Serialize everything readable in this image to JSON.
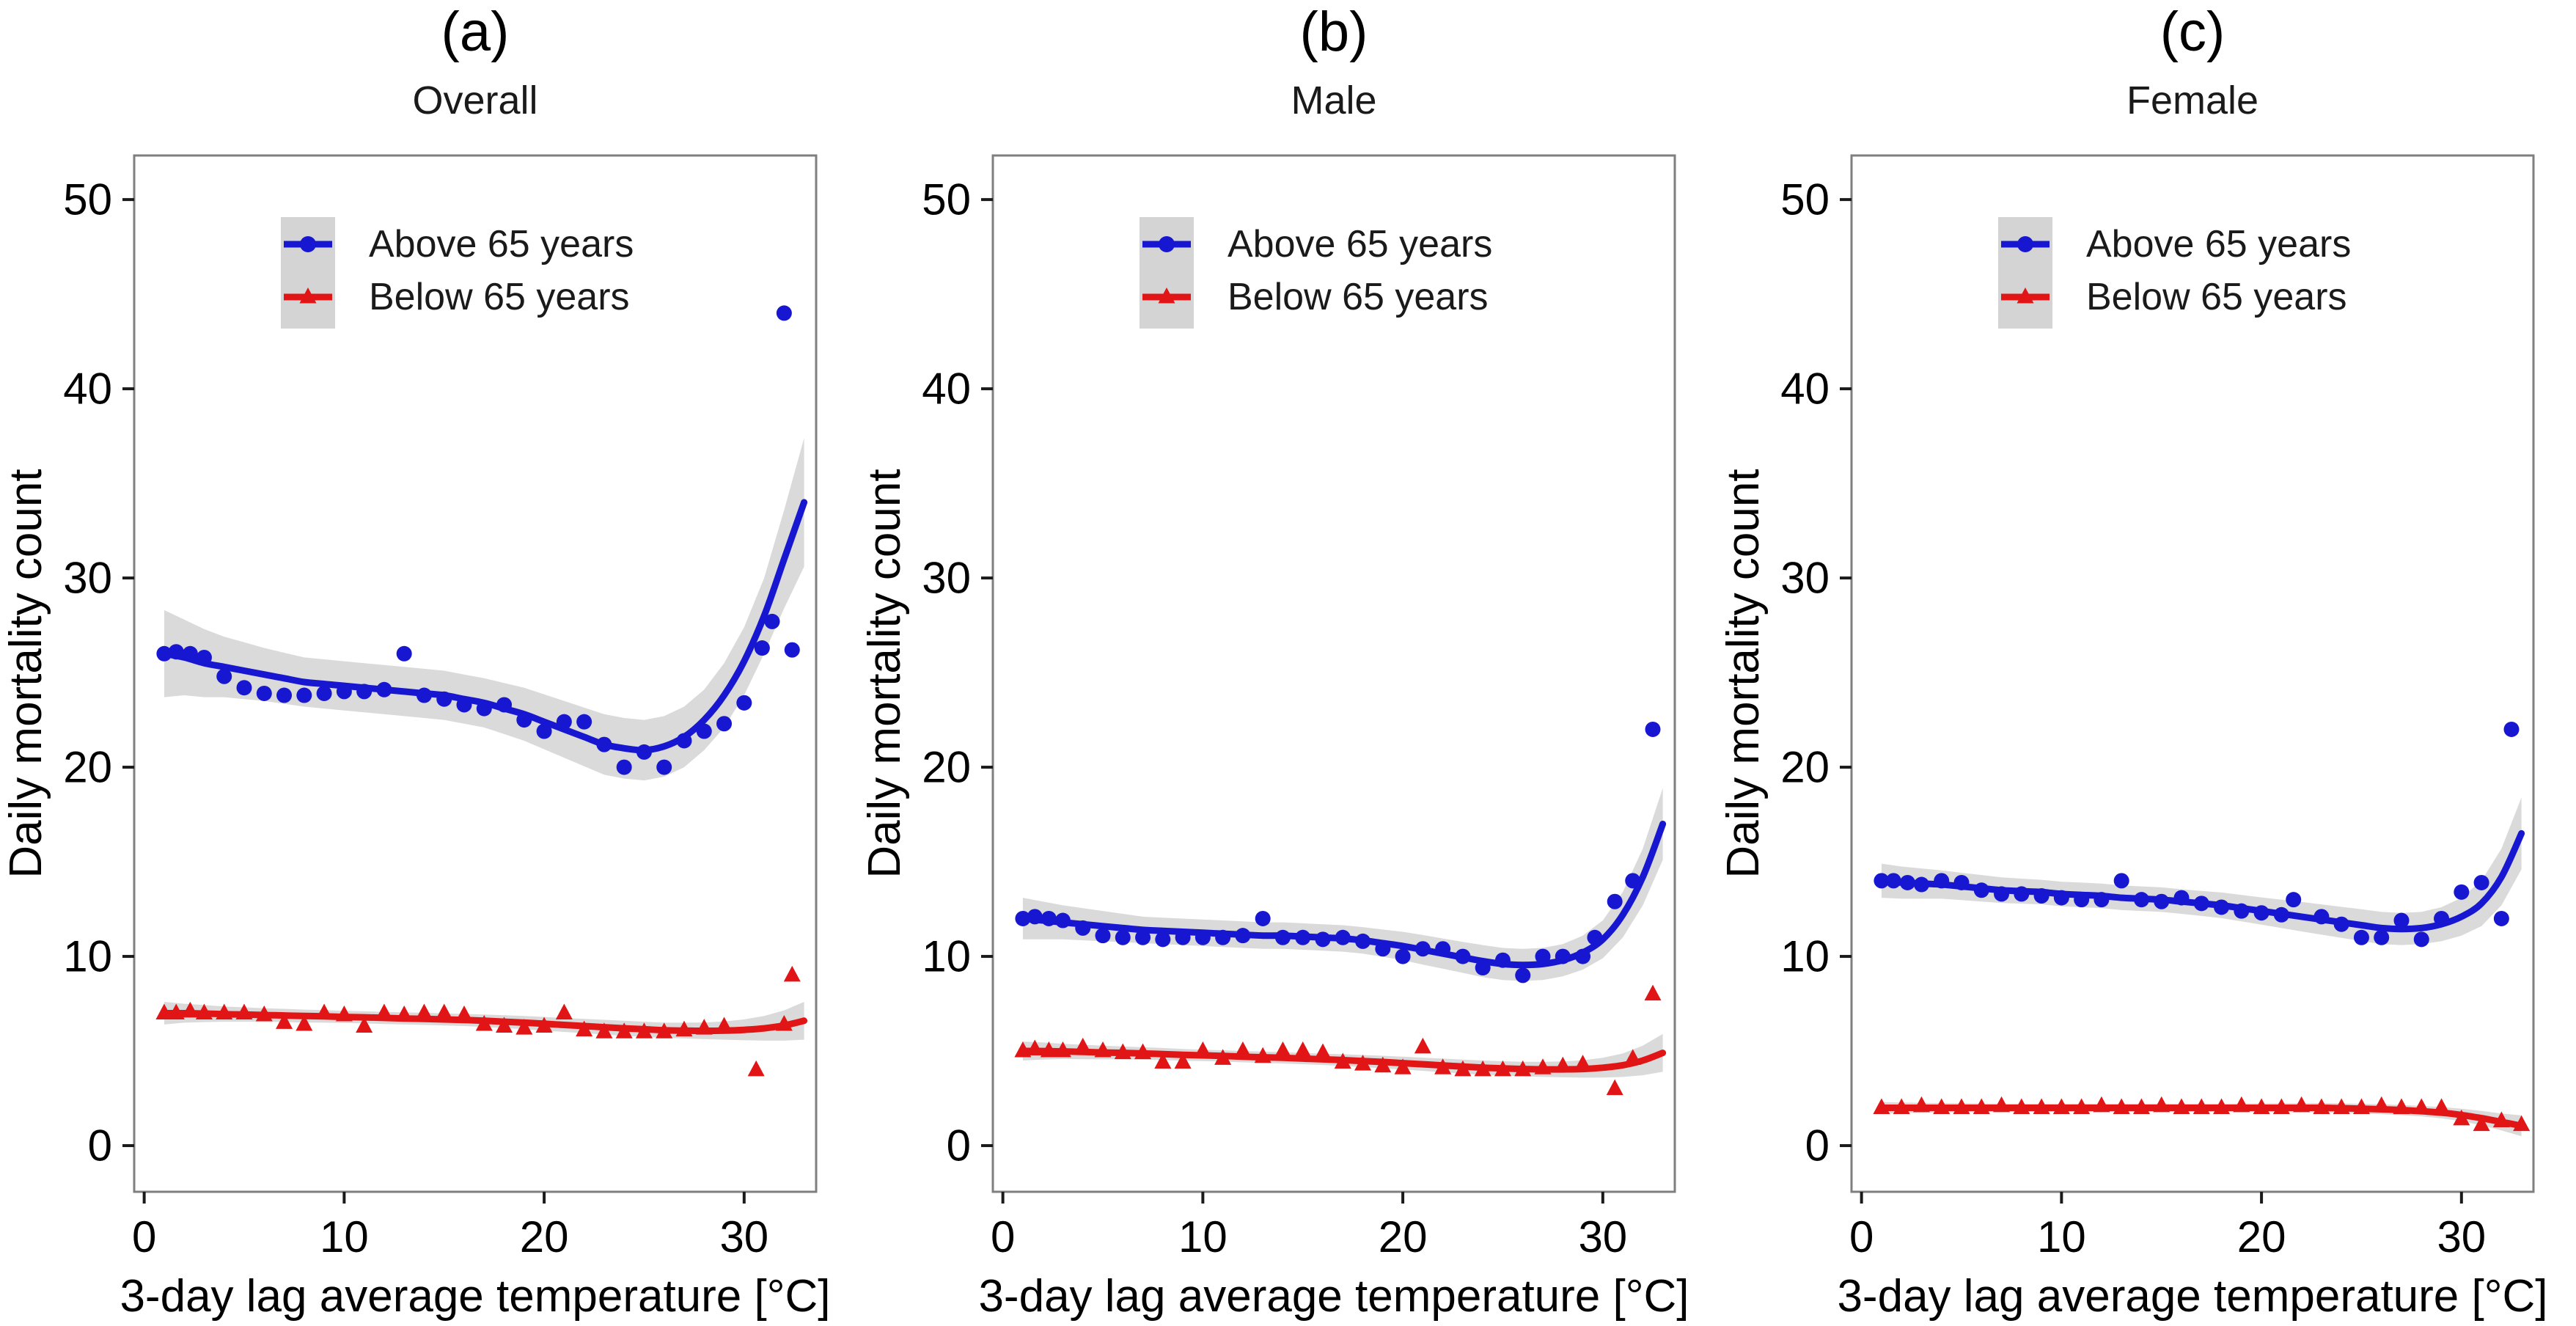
{
  "figure": {
    "background": "#ffffff",
    "border_color": "#7f7f7f",
    "band_color": "#d3d3d3",
    "text_color": "#000000",
    "accent_blue": "#1717d2",
    "accent_red": "#e11515"
  },
  "chart_data": [
    {
      "type": "scatter",
      "panel_label": "(a)",
      "title": "Overall",
      "xlabel": "3-day lag average temperature [°C]",
      "ylabel": "Daily mortality count",
      "xlim": [
        -0.5,
        33.6
      ],
      "ylim": [
        -2.44,
        52.33
      ],
      "xticks": [
        0,
        10,
        20,
        30
      ],
      "yticks": [
        0,
        10,
        20,
        30,
        40,
        50
      ],
      "grid": false,
      "legend_position": "upper-left-inside",
      "series": [
        {
          "name": "Above 65 years",
          "color": "#1717d2",
          "marker": "circle",
          "x": [
            1,
            1.6,
            2.3,
            3,
            4,
            5,
            6,
            7,
            8,
            9,
            10,
            11,
            12,
            13,
            14,
            15,
            16,
            17,
            18,
            19,
            20,
            21,
            22,
            23,
            24,
            25,
            26,
            27,
            28,
            29,
            30,
            30.9,
            31.4,
            32,
            32.4
          ],
          "y": [
            26,
            26.1,
            26,
            25.8,
            24.8,
            24.2,
            23.9,
            23.8,
            23.8,
            23.9,
            24,
            24,
            24.1,
            26,
            23.8,
            23.6,
            23.3,
            23.1,
            23.3,
            22.5,
            21.9,
            22.4,
            22.4,
            21.2,
            20,
            20.8,
            20,
            21.4,
            21.9,
            22.3,
            23.4,
            26.3,
            27.7,
            44,
            26.2
          ],
          "trend_x_range": [
            1,
            33
          ],
          "trend_y": [
            26,
            25.8,
            25.5,
            25.3,
            25.1,
            24.9,
            24.7,
            24.5,
            24.4,
            24.3,
            24.2,
            24.1,
            24,
            23.9,
            23.8,
            23.6,
            23.4,
            23.1,
            22.8,
            22.4,
            22,
            21.6,
            21.2,
            21,
            20.9,
            21.1,
            21.6,
            22.5,
            23.8,
            25.6,
            28,
            31,
            34
          ],
          "band_halfwidth": [
            2.3,
            2.0,
            1.8,
            1.6,
            1.5,
            1.4,
            1.35,
            1.3,
            1.3,
            1.3,
            1.3,
            1.3,
            1.3,
            1.3,
            1.3,
            1.3,
            1.3,
            1.35,
            1.4,
            1.45,
            1.5,
            1.55,
            1.6,
            1.6,
            1.6,
            1.6,
            1.6,
            1.6,
            1.7,
            1.8,
            2.0,
            2.6,
            3.4
          ]
        },
        {
          "name": "Below 65 years",
          "color": "#e11515",
          "marker": "triangle",
          "x": [
            1,
            1.6,
            2.3,
            3,
            4,
            5,
            6,
            7,
            8,
            9,
            10,
            11,
            12,
            13,
            14,
            15,
            16,
            17,
            18,
            19,
            20,
            21,
            22,
            23,
            24,
            25,
            26,
            27,
            28,
            29,
            30.6,
            32,
            32.4
          ],
          "y": [
            7,
            7,
            7.1,
            7,
            7,
            7,
            6.9,
            6.5,
            6.4,
            7,
            6.9,
            6.3,
            7,
            6.9,
            7,
            7,
            6.9,
            6.4,
            6.3,
            6.2,
            6.3,
            7,
            6.1,
            6,
            6,
            6,
            6,
            6.1,
            6.2,
            6.3,
            4,
            6.4,
            9
          ],
          "trend_x_range": [
            1,
            33
          ],
          "trend_y": [
            7,
            7,
            6.98,
            6.95,
            6.93,
            6.9,
            6.88,
            6.85,
            6.83,
            6.8,
            6.78,
            6.75,
            6.72,
            6.7,
            6.67,
            6.64,
            6.6,
            6.55,
            6.5,
            6.44,
            6.38,
            6.32,
            6.26,
            6.2,
            6.15,
            6.1,
            6.08,
            6.07,
            6.08,
            6.12,
            6.2,
            6.35,
            6.6
          ],
          "band_halfwidth": [
            0.6,
            0.5,
            0.45,
            0.4,
            0.38,
            0.36,
            0.35,
            0.34,
            0.33,
            0.32,
            0.32,
            0.32,
            0.32,
            0.32,
            0.32,
            0.32,
            0.33,
            0.34,
            0.35,
            0.36,
            0.37,
            0.38,
            0.39,
            0.4,
            0.4,
            0.4,
            0.42,
            0.44,
            0.48,
            0.55,
            0.65,
            0.8,
            1.0
          ]
        }
      ]
    },
    {
      "type": "scatter",
      "panel_label": "(b)",
      "title": "Male",
      "xlabel": "3-day lag average temperature [°C]",
      "ylabel": "Daily mortality count",
      "xlim": [
        -0.5,
        33.6
      ],
      "ylim": [
        -2.44,
        52.33
      ],
      "xticks": [
        0,
        10,
        20,
        30
      ],
      "yticks": [
        0,
        10,
        20,
        30,
        40,
        50
      ],
      "grid": false,
      "legend_position": "upper-left-inside",
      "series": [
        {
          "name": "Above 65 years",
          "color": "#1717d2",
          "marker": "circle",
          "x": [
            1,
            1.6,
            2.3,
            3,
            4,
            5,
            6,
            7,
            8,
            9,
            10,
            11,
            12,
            13,
            14,
            15,
            16,
            17,
            18,
            19,
            20,
            21,
            22,
            23,
            24,
            25,
            26,
            27,
            28,
            29,
            29.6,
            30.6,
            31.5,
            32.5
          ],
          "y": [
            12,
            12.1,
            12,
            11.9,
            11.5,
            11.1,
            11,
            11,
            10.9,
            11,
            11,
            11,
            11.1,
            12,
            11,
            11,
            10.9,
            11,
            10.8,
            10.4,
            10,
            10.4,
            10.4,
            10,
            9.4,
            9.8,
            9,
            10,
            10,
            10,
            11,
            12.9,
            14,
            22
          ],
          "trend_x_range": [
            1,
            33
          ],
          "trend_y": [
            12,
            11.9,
            11.8,
            11.7,
            11.6,
            11.5,
            11.4,
            11.35,
            11.3,
            11.25,
            11.2,
            11.15,
            11.1,
            11.1,
            11.05,
            11,
            10.95,
            10.85,
            10.7,
            10.55,
            10.35,
            10.15,
            9.95,
            9.75,
            9.6,
            9.55,
            9.6,
            9.8,
            10.2,
            10.9,
            12.2,
            14.2,
            17
          ],
          "band_halfwidth": [
            1.1,
            1.0,
            0.9,
            0.85,
            0.8,
            0.75,
            0.7,
            0.7,
            0.7,
            0.7,
            0.7,
            0.7,
            0.7,
            0.7,
            0.7,
            0.7,
            0.7,
            0.7,
            0.72,
            0.75,
            0.78,
            0.8,
            0.82,
            0.85,
            0.85,
            0.85,
            0.85,
            0.85,
            0.9,
            1.0,
            1.2,
            1.5,
            1.9
          ]
        },
        {
          "name": "Below 65 years",
          "color": "#e11515",
          "marker": "triangle",
          "x": [
            1,
            1.6,
            2.3,
            3,
            4,
            5,
            6,
            7,
            8,
            9,
            10,
            11,
            12,
            13,
            14,
            15,
            16,
            17,
            18,
            19,
            20,
            21,
            22,
            23,
            24,
            25,
            26,
            27,
            28,
            29,
            30.6,
            31.5,
            32.5
          ],
          "y": [
            5,
            5.1,
            5,
            5,
            5.2,
            5,
            4.9,
            4.9,
            4.4,
            4.4,
            5,
            4.6,
            5,
            4.7,
            5,
            5,
            4.9,
            4.4,
            4.3,
            4.2,
            4.1,
            5.2,
            4.1,
            4,
            4,
            4,
            4,
            4.1,
            4.2,
            4.3,
            3,
            4.6,
            8
          ],
          "trend_x_range": [
            1,
            33
          ],
          "trend_y": [
            5,
            5,
            4.98,
            4.95,
            4.92,
            4.9,
            4.87,
            4.84,
            4.8,
            4.77,
            4.74,
            4.7,
            4.67,
            4.64,
            4.6,
            4.56,
            4.52,
            4.47,
            4.42,
            4.36,
            4.3,
            4.24,
            4.18,
            4.12,
            4.08,
            4.05,
            4.03,
            4.03,
            4.05,
            4.12,
            4.25,
            4.5,
            4.9
          ],
          "band_halfwidth": [
            0.5,
            0.45,
            0.4,
            0.38,
            0.36,
            0.34,
            0.33,
            0.32,
            0.31,
            0.3,
            0.3,
            0.3,
            0.3,
            0.3,
            0.3,
            0.3,
            0.31,
            0.32,
            0.33,
            0.34,
            0.35,
            0.36,
            0.37,
            0.38,
            0.38,
            0.38,
            0.4,
            0.42,
            0.46,
            0.52,
            0.62,
            0.78,
            1.0
          ]
        }
      ]
    },
    {
      "type": "scatter",
      "panel_label": "(c)",
      "title": "Female",
      "xlabel": "3-day lag average temperature [°C]",
      "ylabel": "Daily mortality count",
      "xlim": [
        -0.5,
        33.6
      ],
      "ylim": [
        -2.44,
        52.33
      ],
      "xticks": [
        0,
        10,
        20,
        30
      ],
      "yticks": [
        0,
        10,
        20,
        30,
        40,
        50
      ],
      "grid": false,
      "legend_position": "upper-left-inside",
      "series": [
        {
          "name": "Above 65 years",
          "color": "#1717d2",
          "marker": "circle",
          "x": [
            1,
            1.6,
            2.3,
            3,
            4,
            5,
            6,
            7,
            8,
            9,
            10,
            11,
            12,
            13,
            14,
            15,
            16,
            17,
            18,
            19,
            20,
            21,
            21.6,
            23,
            24,
            25,
            26,
            27,
            28,
            29,
            30,
            31,
            32,
            32.5
          ],
          "y": [
            14,
            14,
            13.9,
            13.8,
            14,
            13.9,
            13.5,
            13.3,
            13.3,
            13.2,
            13.1,
            13,
            13,
            14,
            13,
            12.9,
            13.1,
            12.8,
            12.6,
            12.4,
            12.3,
            12.2,
            13,
            12.1,
            11.7,
            11,
            11,
            11.9,
            10.9,
            12,
            13.4,
            13.9,
            12,
            22
          ],
          "trend_x_range": [
            1,
            33
          ],
          "trend_y": [
            14,
            13.9,
            13.85,
            13.8,
            13.7,
            13.6,
            13.5,
            13.45,
            13.4,
            13.3,
            13.25,
            13.2,
            13.1,
            13.05,
            13,
            12.9,
            12.8,
            12.7,
            12.55,
            12.4,
            12.25,
            12.1,
            11.95,
            11.8,
            11.65,
            11.5,
            11.45,
            11.5,
            11.7,
            12.1,
            12.8,
            14.2,
            16.5
          ],
          "band_halfwidth": [
            0.9,
            0.85,
            0.8,
            0.75,
            0.72,
            0.7,
            0.68,
            0.66,
            0.65,
            0.65,
            0.65,
            0.65,
            0.65,
            0.65,
            0.65,
            0.65,
            0.66,
            0.68,
            0.7,
            0.72,
            0.75,
            0.78,
            0.8,
            0.82,
            0.84,
            0.85,
            0.85,
            0.85,
            0.9,
            1.0,
            1.2,
            1.5,
            1.9
          ]
        },
        {
          "name": "Below 65 years",
          "color": "#e11515",
          "marker": "triangle",
          "x": [
            1,
            2,
            3,
            4,
            5,
            6,
            7,
            8,
            9,
            10,
            11,
            12,
            13,
            14,
            15,
            16,
            17,
            18,
            19,
            20,
            21,
            22,
            23,
            24,
            25,
            26,
            27,
            28,
            29,
            30,
            31,
            32,
            33
          ],
          "y": [
            2,
            2,
            2.1,
            2,
            2,
            2,
            2.1,
            2,
            2,
            2,
            2,
            2.1,
            2,
            2,
            2.1,
            2,
            2,
            2,
            2.1,
            2,
            2,
            2.1,
            2,
            2,
            2,
            2.1,
            2,
            2,
            2,
            1.4,
            1.1,
            1.3,
            1.1
          ],
          "trend_x_range": [
            1,
            33
          ],
          "trend_y": [
            2,
            2,
            2,
            2,
            2,
            2,
            2,
            2,
            2,
            2,
            2,
            2,
            2,
            2,
            2,
            2,
            2,
            2,
            2,
            2,
            2,
            2,
            2,
            1.98,
            1.95,
            1.92,
            1.88,
            1.82,
            1.74,
            1.62,
            1.45,
            1.25,
            1.05
          ],
          "band_halfwidth": [
            0.3,
            0.28,
            0.26,
            0.25,
            0.24,
            0.23,
            0.22,
            0.22,
            0.22,
            0.22,
            0.22,
            0.22,
            0.22,
            0.22,
            0.22,
            0.22,
            0.22,
            0.22,
            0.23,
            0.23,
            0.24,
            0.24,
            0.25,
            0.25,
            0.26,
            0.26,
            0.27,
            0.28,
            0.3,
            0.33,
            0.38,
            0.45,
            0.55
          ]
        }
      ]
    }
  ]
}
